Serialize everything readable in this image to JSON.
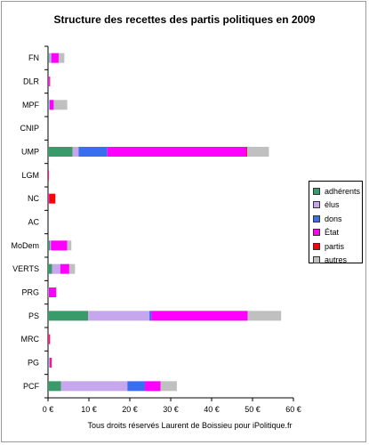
{
  "chart_data": {
    "type": "bar",
    "orientation": "horizontal",
    "stacked": true,
    "title": "Structure des recettes des partis politiques en 2009",
    "xlabel": "Tous droits réservés Laurent de Boissieu pour iPolitique.fr",
    "ylabel": "",
    "xlim": [
      0,
      60
    ],
    "x_ticks": [
      "0 €",
      "10 €",
      "20 €",
      "30 €",
      "40 €",
      "50 €",
      "60 €"
    ],
    "grid": false,
    "legend_position": "right",
    "categories": [
      "FN",
      "DLR",
      "MPF",
      "CNIP",
      "UMP",
      "LGM",
      "NC",
      "AC",
      "MoDem",
      "VERTS",
      "PRG",
      "PS",
      "MRC",
      "PG",
      "PCF"
    ],
    "series": [
      {
        "name": "adhérents",
        "color": "#3a9a6a",
        "values": [
          0.3,
          0.1,
          0.2,
          0.0,
          6.0,
          0.0,
          0.1,
          0.0,
          0.5,
          1.0,
          0.1,
          9.8,
          0.1,
          0.2,
          3.2
        ]
      },
      {
        "name": "élus",
        "color": "#c6a6ec",
        "values": [
          0.5,
          0.0,
          0.2,
          0.0,
          1.5,
          0.0,
          0.0,
          0.0,
          0.2,
          2.0,
          0.1,
          15.0,
          0.0,
          0.2,
          16.2
        ]
      },
      {
        "name": "dons",
        "color": "#3a6ef0",
        "values": [
          0.0,
          0.0,
          0.0,
          0.0,
          7.0,
          0.0,
          0.0,
          0.0,
          0.0,
          0.0,
          0.0,
          0.5,
          0.0,
          0.0,
          4.3
        ]
      },
      {
        "name": "État",
        "color": "#ff00ff",
        "values": [
          1.8,
          0.3,
          1.0,
          0.0,
          34.0,
          0.1,
          0.2,
          0.0,
          4.0,
          2.2,
          1.8,
          23.5,
          0.2,
          0.3,
          3.8
        ]
      },
      {
        "name": "partis",
        "color": "#ff0000",
        "values": [
          0.0,
          0.1,
          0.0,
          0.0,
          0.2,
          0.1,
          1.5,
          0.0,
          0.0,
          0.0,
          0.0,
          0.0,
          0.2,
          0.2,
          0.0
        ]
      },
      {
        "name": "autres",
        "color": "#c0c0c0",
        "values": [
          1.4,
          0.0,
          3.3,
          0.0,
          5.3,
          0.0,
          0.1,
          0.0,
          1.0,
          1.4,
          0.0,
          8.2,
          0.0,
          0.1,
          4.0
        ]
      }
    ]
  }
}
